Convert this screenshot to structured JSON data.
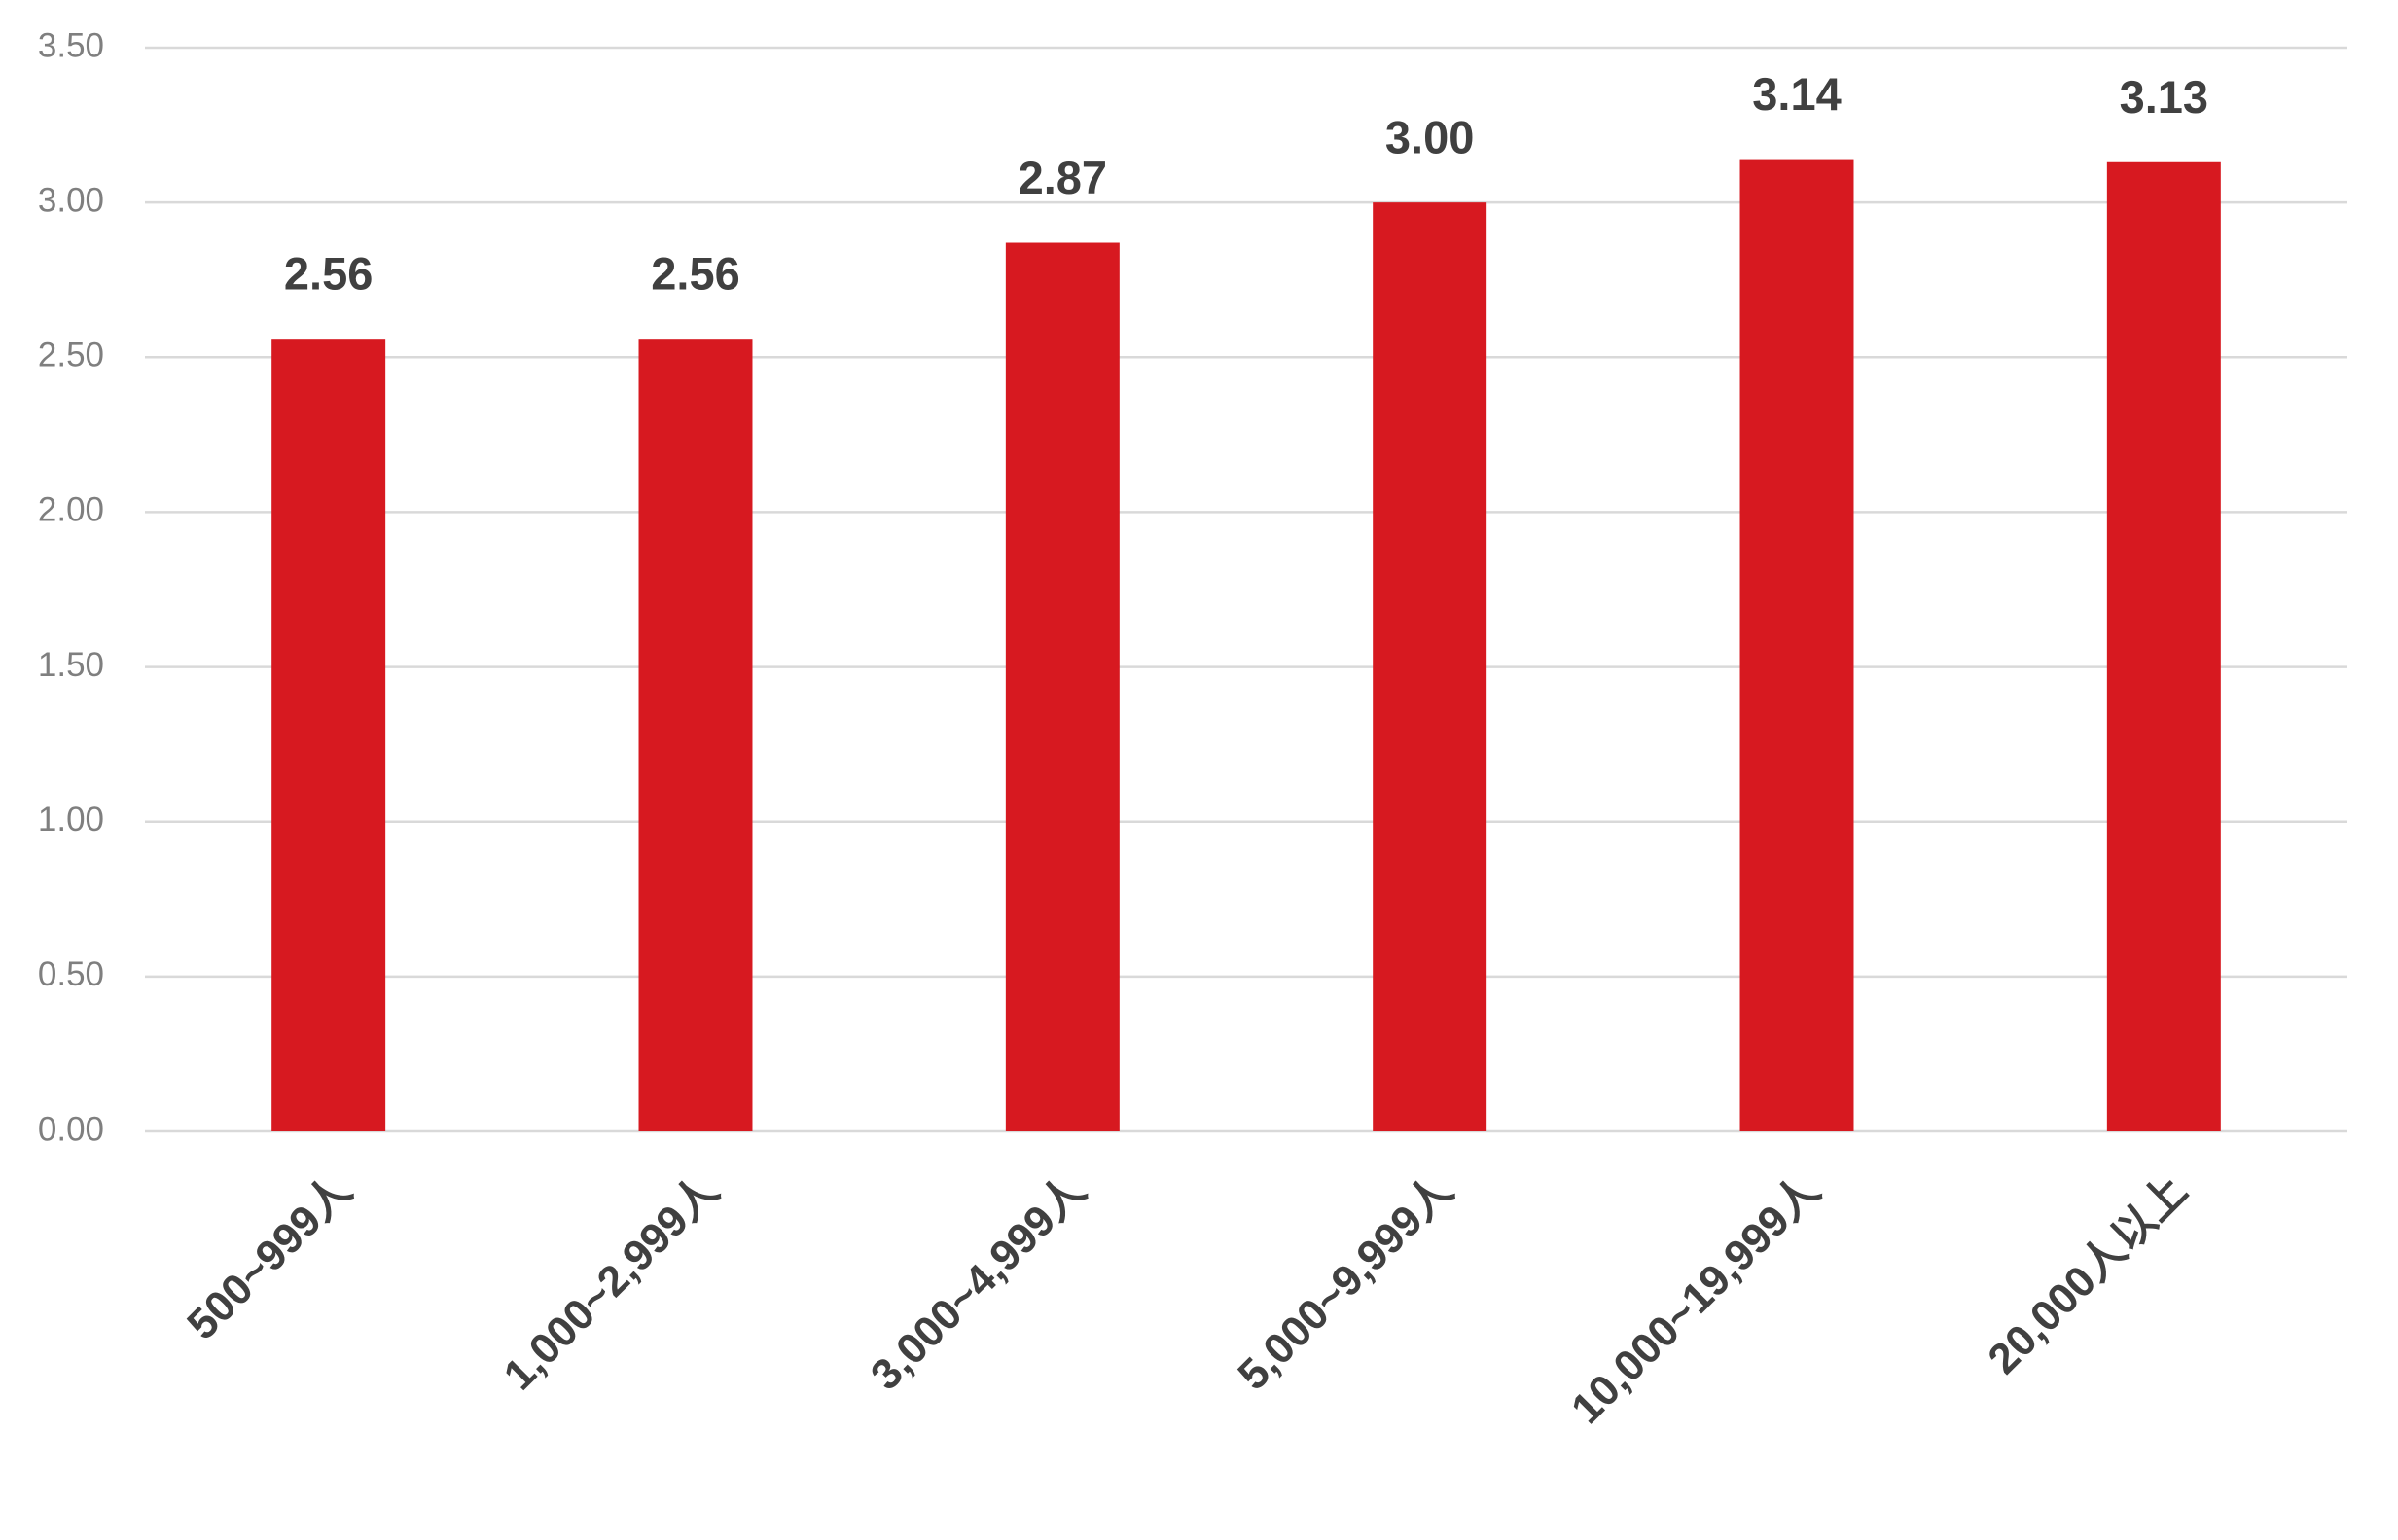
{
  "chart_data": {
    "type": "bar",
    "categories": [
      "500~999人",
      "1,000~2,999人",
      "3,000~4,999人",
      "5,000~9,999人",
      "10,000~19,999人",
      "20,000人以上"
    ],
    "values": [
      2.56,
      2.56,
      2.87,
      3,
      3.14,
      3.13
    ],
    "value_labels": [
      "2.56",
      "2.56",
      "2.87",
      "3.00",
      "3.14",
      "3.13"
    ],
    "color": "#d71920",
    "ylim": [
      0,
      3.5
    ],
    "yticks": [
      {
        "value": 0,
        "label": "0.00"
      },
      {
        "value": 0.5,
        "label": "0.50"
      },
      {
        "value": 1,
        "label": "1.00"
      },
      {
        "value": 1.5,
        "label": "1.50"
      },
      {
        "value": 2,
        "label": "2.00"
      },
      {
        "value": 2.5,
        "label": "2.50"
      },
      {
        "value": 3,
        "label": "3.00"
      },
      {
        "value": 3.5,
        "label": "3.50"
      }
    ],
    "grid": true
  }
}
